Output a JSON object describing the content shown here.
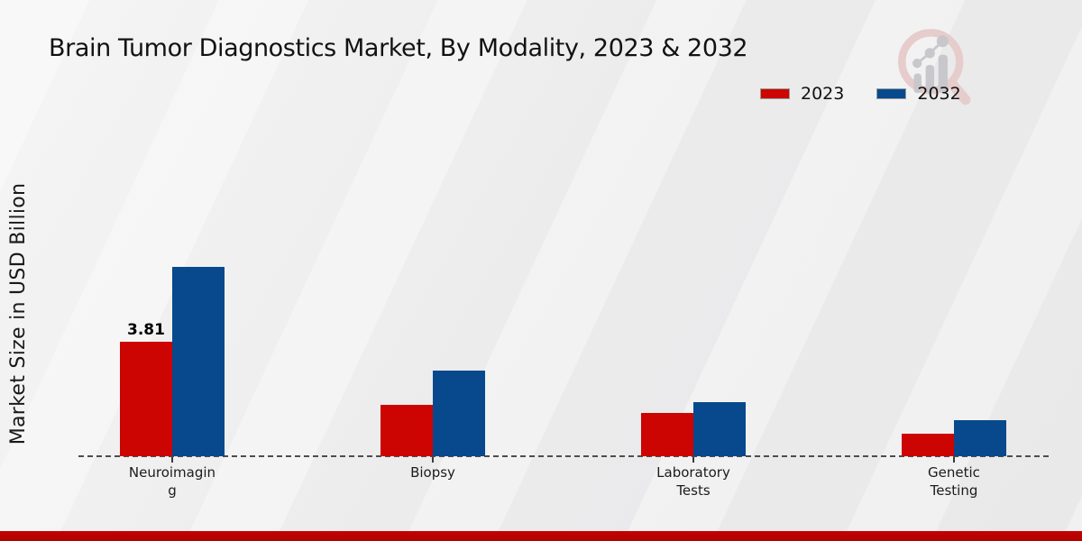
{
  "page": {
    "title": "Brain Tumor Diagnostics Market, By Modality, 2023 & 2032"
  },
  "legend": {
    "items": [
      {
        "label": "2023",
        "color": "#cc0402"
      },
      {
        "label": "2032",
        "color": "#07498c"
      }
    ]
  },
  "branding": {
    "logo_icon": "magnifier-growth-chart-logo",
    "footer_band_color": "#bb0301"
  },
  "chart_data": {
    "type": "bar",
    "title": "Brain Tumor Diagnostics Market, By Modality, 2023 & 2032",
    "xlabel": "",
    "ylabel": "Market Size in USD Billion",
    "categories": [
      "Neuroimaging",
      "Biopsy",
      "Laboratory Tests",
      "Genetic Testing"
    ],
    "category_display": [
      "Neuroimagin\ng",
      "Biopsy",
      "Laboratory\nTests",
      "Genetic\nTesting"
    ],
    "series": [
      {
        "name": "2023",
        "color": "#cc0402",
        "values": [
          3.81,
          1.71,
          1.44,
          0.75
        ]
      },
      {
        "name": "2032",
        "color": "#07498c",
        "values": [
          6.3,
          2.85,
          1.8,
          1.2
        ]
      }
    ],
    "data_labels": [
      {
        "series": "2023",
        "category": "Neuroimaging",
        "text": "3.81"
      }
    ],
    "ylim": [
      0,
      7
    ],
    "grid": false,
    "baseline_style": "dashed",
    "legend_position": "top-right"
  }
}
